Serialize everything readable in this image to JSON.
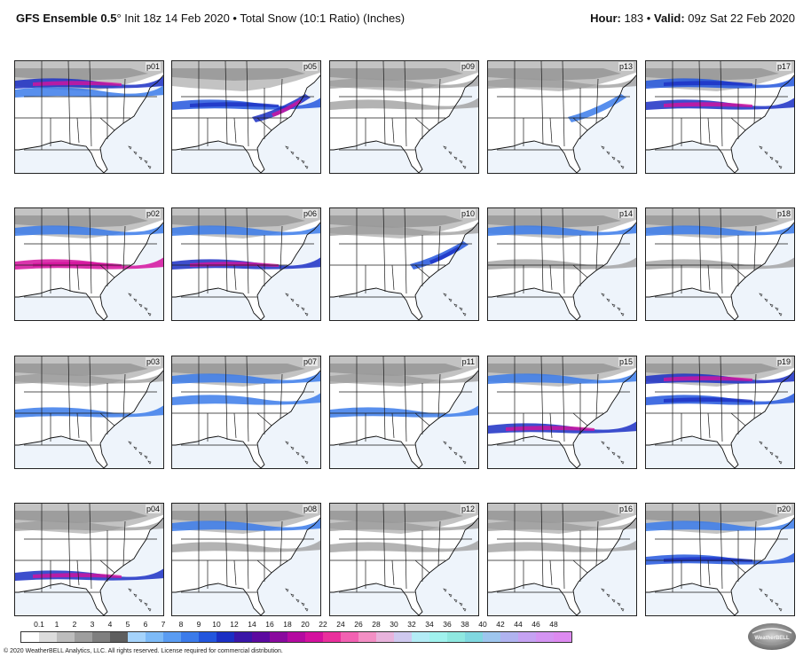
{
  "header": {
    "model": "GFS Ensemble 0.5",
    "model_suffix": "°",
    "init": "Init 18z 14 Feb 2020",
    "bullet": "•",
    "product": "Total Snow (10:1 Ratio) (Inches)",
    "hour_label": "Hour:",
    "hour_value": "183",
    "valid_label": "Valid:",
    "valid_value": "09z Sat 22 Feb 2020"
  },
  "panels": [
    {
      "id": "p01",
      "snow": [
        {
          "band": "n",
          "int": 3
        },
        {
          "band": "mid-n",
          "int": 1
        }
      ]
    },
    {
      "id": "p05",
      "snow": [
        {
          "band": "nc",
          "int": 2
        },
        {
          "band": "east",
          "int": 3
        }
      ]
    },
    {
      "id": "p09",
      "snow": [
        {
          "band": "n",
          "int": 0
        },
        {
          "band": "nc",
          "int": 0
        }
      ]
    },
    {
      "id": "p13",
      "snow": [
        {
          "band": "n",
          "int": 0
        },
        {
          "band": "east",
          "int": 1
        }
      ]
    },
    {
      "id": "p17",
      "snow": [
        {
          "band": "n",
          "int": 2
        },
        {
          "band": "nc",
          "int": 3
        }
      ]
    },
    {
      "id": "p02",
      "snow": [
        {
          "band": "n",
          "int": 1
        },
        {
          "band": "c",
          "int": 4
        }
      ]
    },
    {
      "id": "p06",
      "snow": [
        {
          "band": "n",
          "int": 1
        },
        {
          "band": "c",
          "int": 3
        }
      ]
    },
    {
      "id": "p10",
      "snow": [
        {
          "band": "n",
          "int": 0
        },
        {
          "band": "east",
          "int": 2
        }
      ]
    },
    {
      "id": "p14",
      "snow": [
        {
          "band": "n",
          "int": 1
        },
        {
          "band": "c",
          "int": 0
        }
      ]
    },
    {
      "id": "p18",
      "snow": [
        {
          "band": "n",
          "int": 1
        },
        {
          "band": "c",
          "int": 0
        }
      ]
    },
    {
      "id": "p03",
      "snow": [
        {
          "band": "n",
          "int": 0
        },
        {
          "band": "c",
          "int": 1
        }
      ]
    },
    {
      "id": "p07",
      "snow": [
        {
          "band": "n",
          "int": 1
        },
        {
          "band": "nc",
          "int": 1
        }
      ]
    },
    {
      "id": "p11",
      "snow": [
        {
          "band": "n",
          "int": 0
        },
        {
          "band": "c",
          "int": 1
        }
      ]
    },
    {
      "id": "p15",
      "snow": [
        {
          "band": "n",
          "int": 1
        },
        {
          "band": "sc",
          "int": 3
        }
      ]
    },
    {
      "id": "p19",
      "snow": [
        {
          "band": "n",
          "int": 3
        },
        {
          "band": "nc",
          "int": 2
        }
      ]
    },
    {
      "id": "p04",
      "snow": [
        {
          "band": "n",
          "int": 0
        },
        {
          "band": "sc",
          "int": 3
        }
      ]
    },
    {
      "id": "p08",
      "snow": [
        {
          "band": "n",
          "int": 1
        },
        {
          "band": "nc",
          "int": 0
        }
      ]
    },
    {
      "id": "p12",
      "snow": [
        {
          "band": "n",
          "int": 0
        },
        {
          "band": "nc",
          "int": 0
        }
      ]
    },
    {
      "id": "p16",
      "snow": [
        {
          "band": "n",
          "int": 0
        },
        {
          "band": "nc",
          "int": 0
        }
      ]
    },
    {
      "id": "p20",
      "snow": [
        {
          "band": "n",
          "int": 1
        },
        {
          "band": "c",
          "int": 2
        }
      ]
    }
  ],
  "legend": {
    "ticks": [
      "0.1",
      "1",
      "2",
      "3",
      "4",
      "5",
      "6",
      "7",
      "8",
      "9",
      "10",
      "12",
      "14",
      "16",
      "18",
      "20",
      "22",
      "24",
      "26",
      "28",
      "30",
      "32",
      "34",
      "36",
      "38",
      "40",
      "42",
      "44",
      "46",
      "48"
    ],
    "colors": [
      "#ffffff",
      "#dcdcdc",
      "#bdbdbd",
      "#9e9e9e",
      "#7f7f7f",
      "#5e5e5e",
      "#a5d3fb",
      "#7dbaf7",
      "#5a9cf2",
      "#3b7bea",
      "#2356dd",
      "#1b2fc4",
      "#3a16a8",
      "#5c0aa0",
      "#8a0a9e",
      "#b40aa0",
      "#d4119e",
      "#ea2f9c",
      "#f261b2",
      "#f38fc4",
      "#e8b3dc",
      "#cfc9ef",
      "#b3ecf6",
      "#a0f2ee",
      "#8fe8e0",
      "#80d8e0",
      "#9ec6ee",
      "#b0b3f0",
      "#c5a2f2",
      "#d494f2",
      "#dd8af0"
    ]
  },
  "footer": {
    "copyright": "© 2020 WeatherBELL Analytics, LLC. All rights reserved. License required for commercial distribution.",
    "logo_text": "WeatherBELL"
  }
}
